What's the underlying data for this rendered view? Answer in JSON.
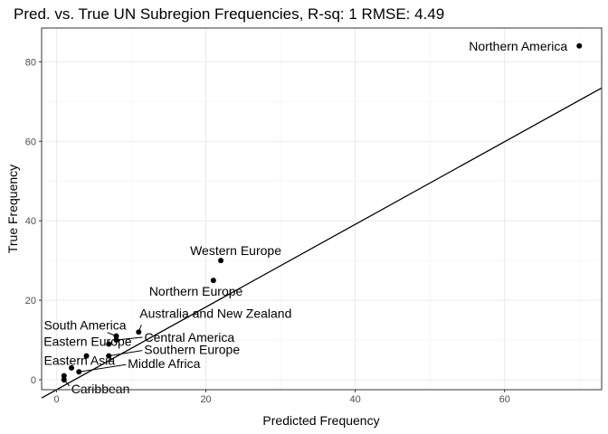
{
  "chart_data": {
    "type": "scatter",
    "title": "Pred. vs. True UN Subregion Frequencies, R-sq: 1 RMSE: 4.49",
    "xlabel": "Predicted Frequency",
    "ylabel": "True Frequency",
    "xlim": [
      -2,
      73
    ],
    "ylim": [
      -2.5,
      88.5
    ],
    "x_ticks": [
      0,
      20,
      40,
      60
    ],
    "y_ticks": [
      0,
      20,
      40,
      60,
      80
    ],
    "grid": true,
    "fit_line": {
      "slope": 1.04,
      "intercept": -2.5
    },
    "points": [
      {
        "x": 70,
        "y": 84,
        "label": "Northern America"
      },
      {
        "x": 22,
        "y": 30,
        "label": "Western Europe"
      },
      {
        "x": 21,
        "y": 25,
        "label": "Northern Europe"
      },
      {
        "x": 11,
        "y": 12,
        "label": "Australia and New Zealand"
      },
      {
        "x": 8,
        "y": 11,
        "label": "South America"
      },
      {
        "x": 8,
        "y": 10,
        "label": "Central America"
      },
      {
        "x": 7,
        "y": 9,
        "label": "Eastern Europe"
      },
      {
        "x": 4,
        "y": 6,
        "label": "Eastern Asia"
      },
      {
        "x": 7,
        "y": 6,
        "label": "Southern Europe"
      },
      {
        "x": 3,
        "y": 2,
        "label": "Middle Africa"
      },
      {
        "x": 2,
        "y": 3,
        "label": ""
      },
      {
        "x": 1,
        "y": 1,
        "label": ""
      },
      {
        "x": 1,
        "y": 0,
        "label": "Caribbean"
      }
    ]
  }
}
